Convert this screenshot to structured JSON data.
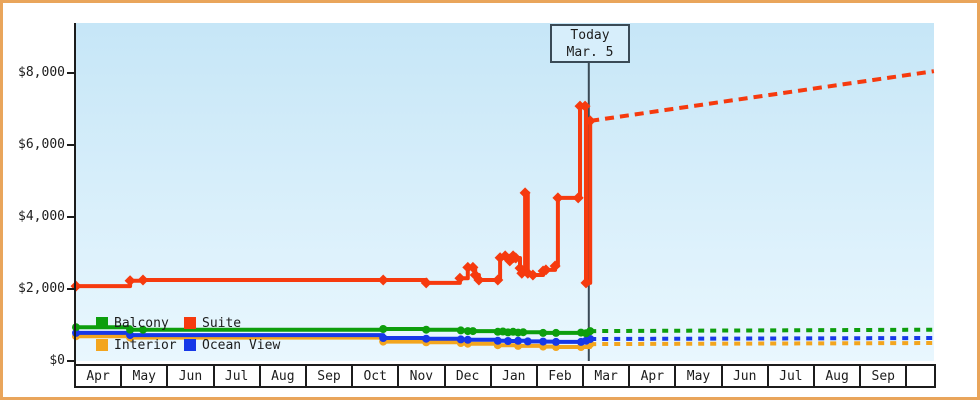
{
  "chart": {
    "today": {
      "line1": "Today",
      "line2": "Mar. 5"
    },
    "y_axis": {
      "tick_labels": [
        "$8,000",
        "$6,000",
        "$4,000",
        "$2,000",
        "$0"
      ],
      "tick_values": [
        8000,
        6000,
        4000,
        2000,
        0
      ]
    },
    "x_axis": {
      "months": [
        "Apr",
        "May",
        "Jun",
        "Jul",
        "Aug",
        "Sep",
        "Oct",
        "Nov",
        "Dec",
        "Jan",
        "Feb",
        "Mar",
        "Apr",
        "May",
        "Jun",
        "Jul",
        "Aug",
        "Sep"
      ]
    },
    "legend": {
      "items": [
        {
          "id": "balcony",
          "label": "Balcony",
          "color": "#0d9e0d"
        },
        {
          "id": "suite",
          "label": "Suite",
          "color": "#f63a0e"
        },
        {
          "id": "interior",
          "label": "Interior",
          "color": "#f3a51e"
        },
        {
          "id": "ocean-view",
          "label": "Ocean View",
          "color": "#1738e8"
        }
      ]
    },
    "colors": {
      "frame_border": "#e9a55b",
      "axis": "#1c1c1c",
      "today_line": "#3a4a56",
      "today_box_bg": "#d7eefb",
      "plot_bg_top": "#c6e6f7",
      "plot_bg_bottom": "#e9f7fe"
    }
  },
  "chart_data": {
    "type": "line",
    "style": "step-after price history with dashed forecast after today",
    "x_categories": [
      "Apr",
      "May",
      "Jun",
      "Jul",
      "Aug",
      "Sep",
      "Oct",
      "Nov",
      "Dec",
      "Jan",
      "Feb",
      "Mar",
      "Apr",
      "May",
      "Jun",
      "Jul",
      "Aug",
      "Sep"
    ],
    "x_unit": "month index (0 = start of first Apr, fractional = day of month)",
    "ylim": [
      0,
      9389
    ],
    "y_ticks": [
      0,
      2000,
      4000,
      6000,
      8000
    ],
    "grid": false,
    "legend_position": "bottom-left inside plot",
    "today_x": 11.1,
    "today_label": "Mar. 5",
    "series": [
      {
        "name": "Interior",
        "color": "#f3a51e",
        "marker": "circle",
        "dash": "6 6",
        "points": [
          [
            0.0,
            690
          ],
          [
            1.17,
            650
          ],
          [
            6.65,
            540
          ],
          [
            7.58,
            520
          ],
          [
            8.33,
            500
          ],
          [
            8.48,
            480
          ],
          [
            9.13,
            440
          ],
          [
            9.57,
            420
          ],
          [
            10.11,
            400
          ],
          [
            10.39,
            390
          ],
          [
            10.93,
            390
          ],
          [
            11.13,
            470
          ]
        ],
        "forecast": [
          [
            11.13,
            470
          ],
          [
            18.57,
            500
          ]
        ]
      },
      {
        "name": "Ocean View",
        "color": "#1738e8",
        "marker": "circle",
        "dash": "6 6",
        "points": [
          [
            0.0,
            780
          ],
          [
            1.17,
            720
          ],
          [
            6.65,
            640
          ],
          [
            7.58,
            620
          ],
          [
            8.33,
            600
          ],
          [
            8.48,
            590
          ],
          [
            9.13,
            560
          ],
          [
            9.35,
            555
          ],
          [
            9.57,
            560
          ],
          [
            9.78,
            545
          ],
          [
            10.11,
            540
          ],
          [
            10.39,
            530
          ],
          [
            10.93,
            530
          ],
          [
            11.04,
            560
          ],
          [
            11.13,
            610
          ]
        ],
        "forecast": [
          [
            11.13,
            610
          ],
          [
            18.57,
            640
          ]
        ]
      },
      {
        "name": "Balcony",
        "color": "#0d9e0d",
        "marker": "circle",
        "dash": "6 6",
        "points": [
          [
            0.0,
            940
          ],
          [
            1.17,
            870
          ],
          [
            1.45,
            870
          ],
          [
            6.65,
            890
          ],
          [
            7.58,
            870
          ],
          [
            8.33,
            850
          ],
          [
            8.48,
            830
          ],
          [
            8.59,
            830
          ],
          [
            9.13,
            810
          ],
          [
            9.24,
            820
          ],
          [
            9.35,
            795
          ],
          [
            9.46,
            810
          ],
          [
            9.57,
            790
          ],
          [
            9.68,
            800
          ],
          [
            10.11,
            780
          ],
          [
            10.39,
            780
          ],
          [
            10.93,
            790
          ],
          [
            11.04,
            770
          ],
          [
            11.13,
            830
          ]
        ],
        "forecast": [
          [
            11.13,
            830
          ],
          [
            18.57,
            870
          ]
        ]
      },
      {
        "name": "Suite",
        "color": "#f63a0e",
        "marker": "diamond",
        "dash": "9 6",
        "points": [
          [
            0.0,
            2080
          ],
          [
            1.17,
            2230
          ],
          [
            1.45,
            2250
          ],
          [
            6.65,
            2250
          ],
          [
            7.58,
            2170
          ],
          [
            8.31,
            2300
          ],
          [
            8.48,
            2600
          ],
          [
            8.59,
            2600
          ],
          [
            8.64,
            2390
          ],
          [
            8.72,
            2250
          ],
          [
            9.13,
            2250
          ],
          [
            9.18,
            2870
          ],
          [
            9.29,
            2920
          ],
          [
            9.39,
            2780
          ],
          [
            9.46,
            2920
          ],
          [
            9.52,
            2860
          ],
          [
            9.61,
            2580
          ],
          [
            9.65,
            2440
          ],
          [
            9.72,
            4670
          ],
          [
            9.78,
            2440
          ],
          [
            9.89,
            2390
          ],
          [
            10.11,
            2500
          ],
          [
            10.17,
            2530
          ],
          [
            10.37,
            2640
          ],
          [
            10.43,
            4530
          ],
          [
            10.87,
            4530
          ],
          [
            10.91,
            7080
          ],
          [
            11.02,
            7080
          ],
          [
            11.04,
            2170
          ],
          [
            11.13,
            6670
          ]
        ],
        "forecast": [
          [
            11.13,
            6670
          ],
          [
            18.57,
            8050
          ]
        ]
      }
    ]
  }
}
